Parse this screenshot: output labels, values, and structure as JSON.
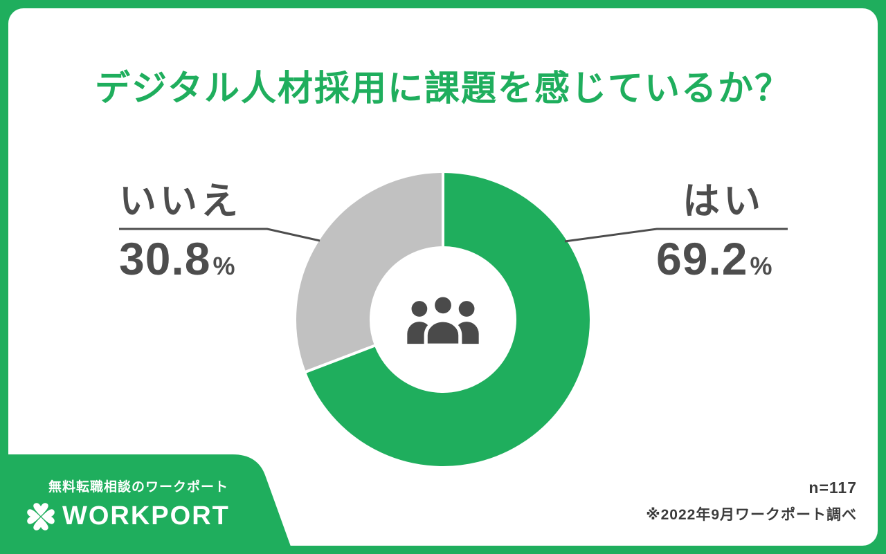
{
  "frame_color": "#1fae5d",
  "title": "デジタル人材採用に課題を感じているか？",
  "chart_data": {
    "type": "pie",
    "variant": "donut",
    "title": "デジタル人材採用に課題を感じているか？",
    "categories": [
      "はい",
      "いいえ"
    ],
    "values": [
      69.2,
      30.8
    ],
    "unit": "%",
    "colors": [
      "#1fae5d",
      "#c1c1c1"
    ],
    "start_angle": "top",
    "direction": "clockwise",
    "legend_position": "callout-labels",
    "center_icon": "people-group-icon",
    "labels": {
      "right": {
        "text": "はい",
        "value": "69.2",
        "unit": "%"
      },
      "left": {
        "text": "いいえ",
        "value": "30.8",
        "unit": "%"
      }
    }
  },
  "footer": {
    "tagline": "無料転職相談のワークポート",
    "brand": "WORKPORT",
    "brand_icon": "clover-icon",
    "sample_size": "n=117",
    "source": "※2022年9月ワークポート調べ"
  }
}
